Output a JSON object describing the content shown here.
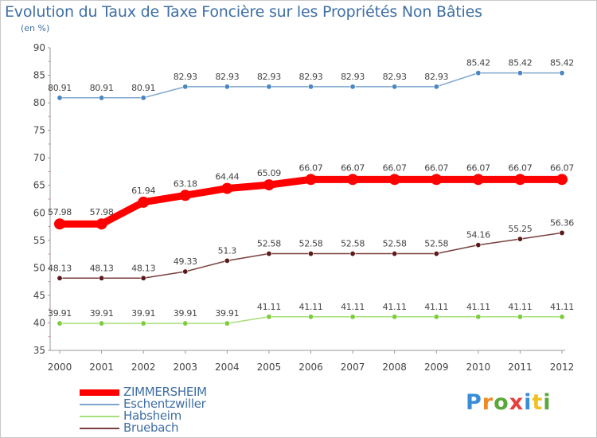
{
  "chart_data": {
    "type": "line",
    "title": "Evolution du Taux de Taxe Foncière sur les Propriétés Non Bâties",
    "subtitle": "(en %)",
    "x": [
      "2000",
      "2001",
      "2002",
      "2003",
      "2004",
      "2005",
      "2006",
      "2007",
      "2008",
      "2009",
      "2010",
      "2011",
      "2012"
    ],
    "ylim": [
      35,
      90
    ],
    "yticks": [
      35,
      40,
      45,
      50,
      55,
      60,
      65,
      70,
      75,
      80,
      85,
      90
    ],
    "grid": false,
    "legend_position": "bottom-left",
    "series": [
      {
        "name": "ZIMMERSHEIM",
        "color": "#ff0000",
        "marker_color": "#ff0000",
        "emphasis": true,
        "values": [
          57.98,
          57.98,
          61.94,
          63.18,
          64.44,
          65.09,
          66.07,
          66.07,
          66.07,
          66.07,
          66.07,
          66.07,
          66.07
        ],
        "labels": [
          "57.98",
          "57.98",
          "61.94",
          "63.18",
          "64.44",
          "65.09",
          "66.07",
          "66.07",
          "66.07",
          "66.07",
          "66.07",
          "66.07",
          "66.07"
        ]
      },
      {
        "name": "Eschentzwiller",
        "color": "#7ea6cc",
        "marker_color": "#4a86c2",
        "emphasis": false,
        "values": [
          80.91,
          80.91,
          80.91,
          82.93,
          82.93,
          82.93,
          82.93,
          82.93,
          82.93,
          82.93,
          85.42,
          85.42,
          85.42
        ],
        "labels": [
          "80.91",
          "80.91",
          "80.91",
          "82.93",
          "82.93",
          "82.93",
          "82.93",
          "82.93",
          "82.93",
          "82.93",
          "85.42",
          "85.42",
          "85.42"
        ]
      },
      {
        "name": "Habsheim",
        "color": "#a6e07a",
        "marker_color": "#7ccc3c",
        "emphasis": false,
        "values": [
          39.91,
          39.91,
          39.91,
          39.91,
          39.91,
          41.11,
          41.11,
          41.11,
          41.11,
          41.11,
          41.11,
          41.11,
          41.11
        ],
        "labels": [
          "39.91",
          "39.91",
          "39.91",
          "39.91",
          "39.91",
          "41.11",
          "41.11",
          "41.11",
          "41.11",
          "41.11",
          "41.11",
          "41.11",
          "41.11"
        ]
      },
      {
        "name": "Bruebach",
        "color": "#7a3f3f",
        "marker_color": "#5a1a1a",
        "emphasis": false,
        "values": [
          48.13,
          48.13,
          48.13,
          49.33,
          51.3,
          52.58,
          52.58,
          52.58,
          52.58,
          52.58,
          54.16,
          55.25,
          56.36
        ],
        "labels": [
          "48.13",
          "48.13",
          "48.13",
          "49.33",
          "51.3",
          "52.58",
          "52.58",
          "52.58",
          "52.58",
          "52.58",
          "54.16",
          "55.25",
          "56.36"
        ]
      }
    ]
  },
  "logo": {
    "text": "Proxiti",
    "letters": [
      "P",
      "r",
      "o",
      "x",
      "i",
      "t",
      "i"
    ],
    "colors": [
      "#3a8ed8",
      "#f08a24",
      "#5aa83a",
      "#e83d3d",
      "#3a8ed8",
      "#f0c020",
      "#5aa83a"
    ]
  }
}
